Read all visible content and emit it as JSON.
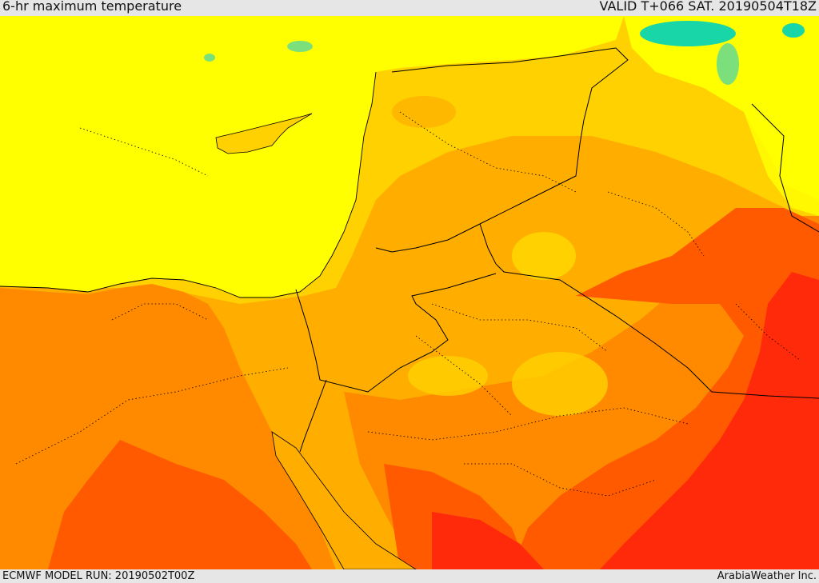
{
  "header": {
    "title": "6-hr maximum temperature",
    "valid": "VALID T+066 SAT. 20190504T18Z"
  },
  "footer": {
    "model_run": "ECMWF MODEL RUN: 20190502T00Z",
    "credit": "ArabiaWeather Inc."
  },
  "map": {
    "region": "Eastern Mediterranean and Middle East",
    "colors": {
      "cool_green": "#7be07b",
      "cyan": "#18d6a8",
      "yellow": "#ffff00",
      "light_orange": "#ffd100",
      "orange": "#ffae00",
      "dark_orange": "#ff8a00",
      "red_orange": "#ff5a00",
      "red": "#ff2a0a",
      "border": "#000000"
    }
  }
}
